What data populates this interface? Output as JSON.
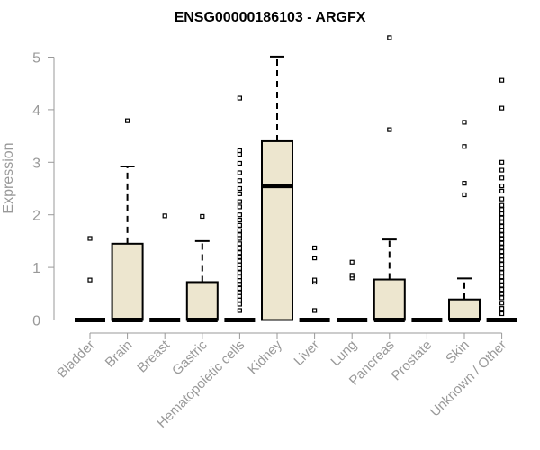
{
  "chart_data": {
    "type": "box",
    "title": "ENSG00000186103 - ARGFX",
    "xlabel": "",
    "ylabel": "Expression",
    "ylim": [
      0,
      5.25
    ],
    "yticks": [
      "0",
      "1",
      "2",
      "3",
      "4",
      "5"
    ],
    "grid": false,
    "legend": "none",
    "colors": {
      "box_fill": "#ede6cf",
      "stroke": "#000000",
      "axis": "#999999",
      "title": "#000000"
    },
    "categories": [
      "Bladder",
      "Brain",
      "Breast",
      "Gastric",
      "Hematopoietic cells",
      "Kidney",
      "Liver",
      "Lung",
      "Pancreas",
      "Prostate",
      "Skin",
      "Unknown / Other"
    ],
    "boxes": [
      {
        "q1": 0,
        "median": 0,
        "q3": 0,
        "whisker_low": 0,
        "whisker_high": 0,
        "outliers": [
          0.76,
          1.55
        ]
      },
      {
        "q1": 0,
        "median": 0,
        "q3": 1.45,
        "whisker_low": 0,
        "whisker_high": 2.92,
        "outliers": [
          3.79
        ]
      },
      {
        "q1": 0,
        "median": 0,
        "q3": 0,
        "whisker_low": 0,
        "whisker_high": 0,
        "outliers": [
          1.98
        ]
      },
      {
        "q1": 0,
        "median": 0,
        "q3": 0.72,
        "whisker_low": 0,
        "whisker_high": 1.5,
        "outliers": [
          1.97
        ]
      },
      {
        "q1": 0,
        "median": 0,
        "q3": 0,
        "whisker_low": 0,
        "whisker_high": 0,
        "outliers": [
          0.18,
          0.3,
          0.38,
          0.45,
          0.52,
          0.6,
          0.68,
          0.75,
          0.82,
          0.9,
          0.98,
          1.05,
          1.12,
          1.2,
          1.28,
          1.36,
          1.45,
          1.55,
          1.62,
          1.7,
          1.8,
          1.9,
          2.0,
          2.15,
          2.25,
          2.4,
          2.5,
          2.65,
          2.8,
          2.98,
          3.15,
          3.22,
          4.22
        ]
      },
      {
        "q1": 0,
        "median": 2.55,
        "q3": 3.4,
        "whisker_low": 0,
        "whisker_high": 5.01,
        "outliers": []
      },
      {
        "q1": 0,
        "median": 0,
        "q3": 0,
        "whisker_low": 0,
        "whisker_high": 0,
        "outliers": [
          0.18,
          0.72,
          0.76,
          1.18,
          1.37
        ]
      },
      {
        "q1": 0,
        "median": 0,
        "q3": 0,
        "whisker_low": 0,
        "whisker_high": 0,
        "outliers": [
          0.8,
          0.85,
          1.1
        ]
      },
      {
        "q1": 0,
        "median": 0,
        "q3": 0.77,
        "whisker_low": 0,
        "whisker_high": 1.53,
        "outliers": [
          3.62,
          5.37
        ]
      },
      {
        "q1": 0,
        "median": 0,
        "q3": 0,
        "whisker_low": 0,
        "whisker_high": 0,
        "outliers": []
      },
      {
        "q1": 0,
        "median": 0,
        "q3": 0.39,
        "whisker_low": 0,
        "whisker_high": 0.79,
        "outliers": [
          2.38,
          2.6,
          3.3,
          3.76
        ]
      },
      {
        "q1": 0,
        "median": 0,
        "q3": 0,
        "whisker_low": 0,
        "whisker_high": 0,
        "outliers": [
          0.12,
          0.22,
          0.32,
          0.42,
          0.5,
          0.58,
          0.66,
          0.74,
          0.82,
          0.9,
          0.98,
          1.06,
          1.14,
          1.22,
          1.3,
          1.38,
          1.46,
          1.54,
          1.62,
          1.7,
          1.78,
          1.86,
          1.94,
          2.02,
          2.1,
          2.18,
          2.3,
          2.45,
          2.55,
          2.7,
          2.85,
          3.0,
          4.03,
          4.56
        ]
      }
    ]
  }
}
